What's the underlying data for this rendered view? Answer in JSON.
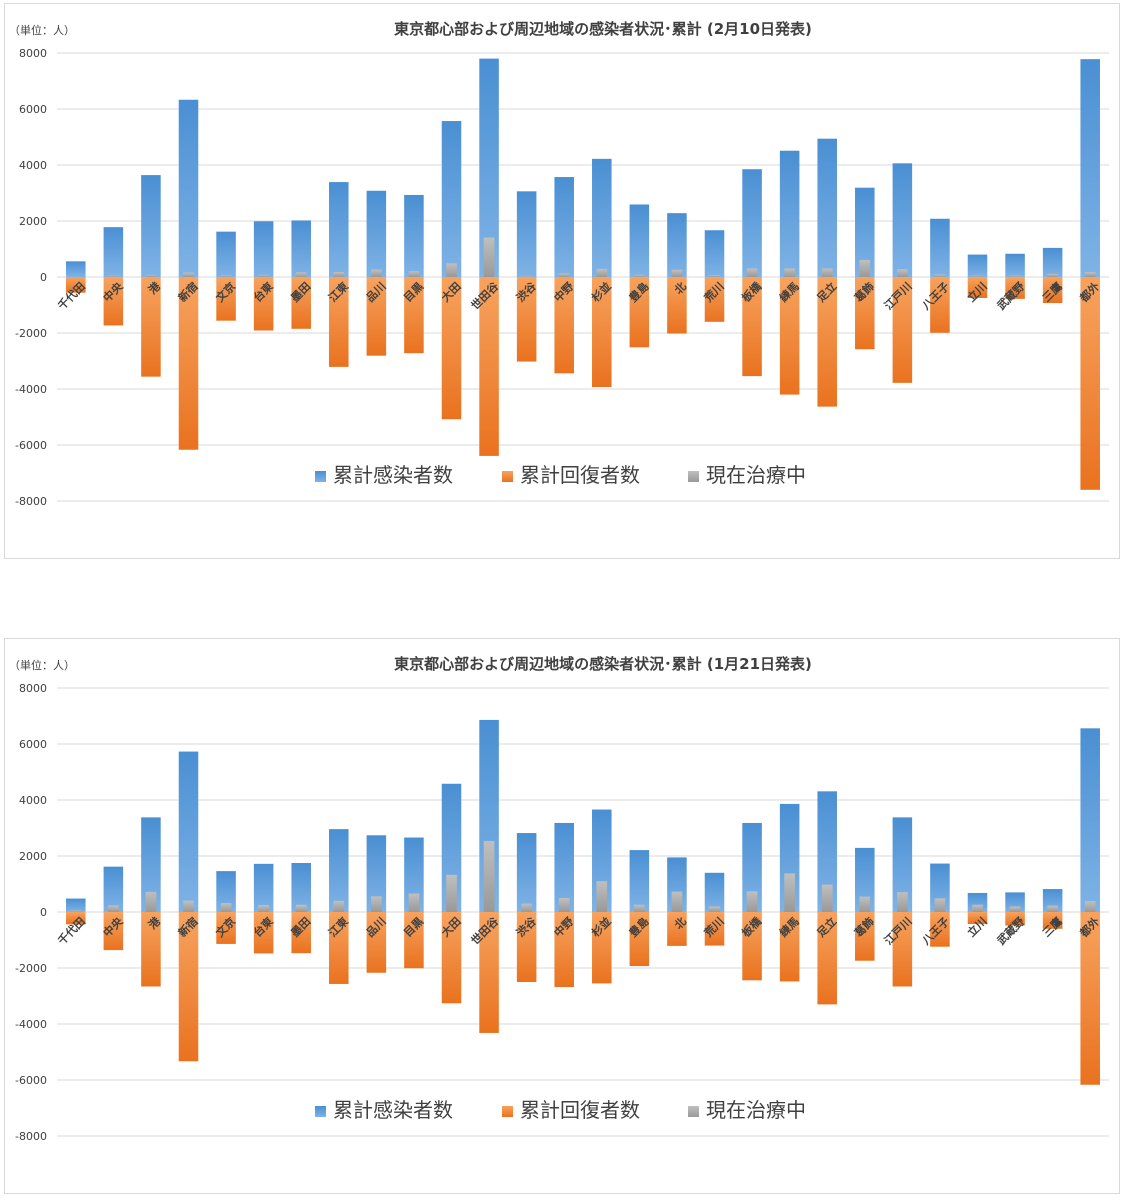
{
  "chart_data": [
    {
      "type": "bar",
      "title": "東京都心部および周辺地域の感染者状況･累計 (2月10日発表)",
      "unit_label": "（単位：人）",
      "ylim": [
        -8000,
        8000
      ],
      "yticks": [
        8000,
        6000,
        4000,
        2000,
        0,
        -2000,
        -4000,
        -6000,
        -8000
      ],
      "grid": true,
      "legend_position": "bottom-center",
      "categories": [
        "千代田",
        "中央",
        "港",
        "新宿",
        "文京",
        "台東",
        "墨田",
        "江東",
        "品川",
        "目黒",
        "大田",
        "世田谷",
        "渋谷",
        "中野",
        "杉並",
        "豊島",
        "北",
        "荒川",
        "板橋",
        "練馬",
        "足立",
        "葛飾",
        "江戸川",
        "八王子",
        "立川",
        "武蔵野",
        "三鷹",
        "都外"
      ],
      "series": [
        {
          "name": "累計感染者数",
          "color": "#5b9bd5",
          "values": [
            560,
            1780,
            3640,
            6330,
            1620,
            1990,
            2020,
            3390,
            3080,
            2930,
            5570,
            7800,
            3060,
            3570,
            4220,
            2590,
            2280,
            1670,
            3850,
            4510,
            4940,
            3190,
            4060,
            2080,
            800,
            830,
            1040,
            7780
          ]
        },
        {
          "name": "累計回復者数",
          "color": "#ed7d31",
          "values": [
            -560,
            -1730,
            -3560,
            -6170,
            -1560,
            -1910,
            -1850,
            -3210,
            -2810,
            -2720,
            -5080,
            -6390,
            -3020,
            -3440,
            -3930,
            -2510,
            -2020,
            -1600,
            -3540,
            -4200,
            -4630,
            -2580,
            -3780,
            -1990,
            -750,
            -780,
            -930,
            -7600
          ]
        },
        {
          "name": "現在治療中",
          "color": "#a5a5a5",
          "values": [
            0,
            50,
            80,
            160,
            60,
            80,
            170,
            180,
            270,
            210,
            490,
            1410,
            40,
            130,
            290,
            80,
            260,
            70,
            310,
            310,
            310,
            610,
            280,
            90,
            50,
            50,
            110,
            180
          ]
        }
      ]
    },
    {
      "type": "bar",
      "title": "東京都心部および周辺地域の感染者状況･累計 (1月21日発表)",
      "unit_label": "（単位：人）",
      "ylim": [
        -8000,
        8000
      ],
      "yticks": [
        8000,
        6000,
        4000,
        2000,
        0,
        -2000,
        -4000,
        -6000,
        -8000
      ],
      "grid": true,
      "legend_position": "bottom-center",
      "categories": [
        "千代田",
        "中央",
        "港",
        "新宿",
        "文京",
        "台東",
        "墨田",
        "江東",
        "品川",
        "目黒",
        "大田",
        "世田谷",
        "渋谷",
        "中野",
        "杉並",
        "豊島",
        "北",
        "荒川",
        "板橋",
        "練馬",
        "足立",
        "葛飾",
        "江戸川",
        "八王子",
        "立川",
        "武蔵野",
        "三鷹",
        "都外"
      ],
      "series": [
        {
          "name": "累計感染者数",
          "color": "#5b9bd5",
          "values": [
            480,
            1620,
            3380,
            5730,
            1460,
            1720,
            1750,
            2960,
            2740,
            2660,
            4580,
            6860,
            2820,
            3180,
            3660,
            2210,
            1950,
            1400,
            3180,
            3860,
            4310,
            2290,
            3380,
            1730,
            680,
            700,
            820,
            6560
          ]
        },
        {
          "name": "累計回復者数",
          "color": "#ed7d31",
          "values": [
            -440,
            -1360,
            -2660,
            -5330,
            -1140,
            -1480,
            -1470,
            -2570,
            -2170,
            -2010,
            -3260,
            -4320,
            -2500,
            -2680,
            -2550,
            -1930,
            -1210,
            -1200,
            -2440,
            -2480,
            -3300,
            -1740,
            -2660,
            -1240,
            -430,
            -480,
            -600,
            -6170
          ]
        },
        {
          "name": "現在治療中",
          "color": "#a5a5a5",
          "values": [
            50,
            240,
            720,
            410,
            320,
            250,
            260,
            400,
            560,
            660,
            1330,
            2540,
            300,
            500,
            1100,
            260,
            730,
            200,
            740,
            1380,
            980,
            550,
            710,
            490,
            260,
            200,
            230,
            390
          ]
        }
      ]
    }
  ]
}
